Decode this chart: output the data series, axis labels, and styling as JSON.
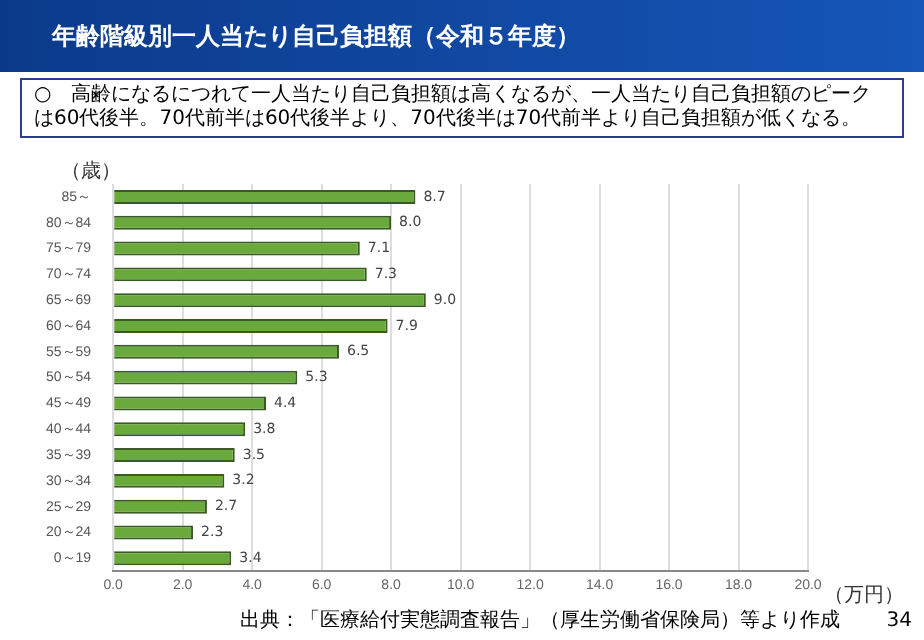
{
  "chart_data": {
    "type": "bar",
    "orientation": "horizontal",
    "title": "年齢階級別一人当たり自己負担額（令和５年度）",
    "subtitle": "○　高齢になるにつれて一人当たり自己負担額は高くなるが、一人当たり自己負担額のピークは60代後半。70代前半は60代後半より、70代後半は70代前半より自己負担額が低くなる。",
    "ylabel": "（歳）",
    "xlabel": "（万円）",
    "categories": [
      "85～",
      "80～84",
      "75～79",
      "70～74",
      "65～69",
      "60～64",
      "55～59",
      "50～54",
      "45～49",
      "40～44",
      "35～39",
      "30～34",
      "25～29",
      "20～24",
      "0～19"
    ],
    "values": [
      8.7,
      8.0,
      7.1,
      7.3,
      9.0,
      7.9,
      6.5,
      5.3,
      4.4,
      3.8,
      3.5,
      3.2,
      2.7,
      2.3,
      3.4
    ],
    "value_labels": [
      "8.7",
      "8.0",
      "7.1",
      "7.3",
      "9.0",
      "7.9",
      "6.5",
      "5.3",
      "4.4",
      "3.8",
      "3.5",
      "3.2",
      "2.7",
      "2.3",
      "3.4"
    ],
    "color": "#6aaa3c",
    "xlim": [
      0,
      20
    ],
    "xticks": [
      {
        "value": 0,
        "label": "0.0"
      },
      {
        "value": 2,
        "label": "2.0"
      },
      {
        "value": 4,
        "label": "4.0"
      },
      {
        "value": 6,
        "label": "6.0"
      },
      {
        "value": 8,
        "label": "8.0"
      },
      {
        "value": 10,
        "label": "10.0"
      },
      {
        "value": 12,
        "label": "12.0"
      },
      {
        "value": 14,
        "label": "14.0"
      },
      {
        "value": 16,
        "label": "16.0"
      },
      {
        "value": 18,
        "label": "18.0"
      },
      {
        "value": 20,
        "label": "20.0"
      }
    ],
    "grid": "x",
    "legend": false,
    "annotations": [
      "出典：「医療給付実態調査報告」（厚生労働省保険局）等より作成",
      "34"
    ]
  }
}
